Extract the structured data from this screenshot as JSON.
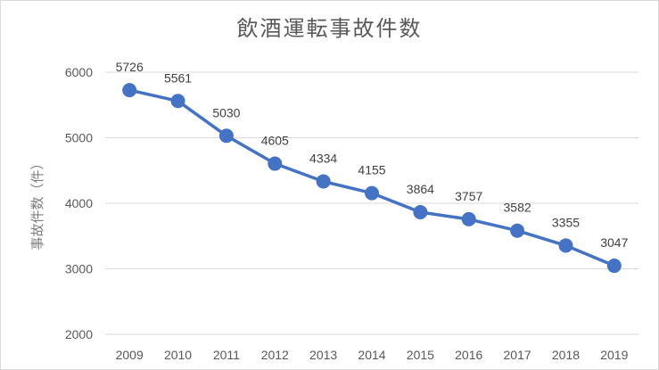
{
  "chart_data": {
    "type": "line",
    "title": "飲酒運転事故件数",
    "xlabel": "",
    "ylabel": "事故件数（件）",
    "categories": [
      "2009",
      "2010",
      "2011",
      "2012",
      "2013",
      "2014",
      "2015",
      "2016",
      "2017",
      "2018",
      "2019"
    ],
    "series": [
      {
        "values": [
          5726,
          5561,
          5030,
          4605,
          4334,
          4155,
          3864,
          3757,
          3582,
          3355,
          3047
        ]
      }
    ],
    "ylim": [
      2000,
      6000
    ],
    "yticks": [
      2000,
      3000,
      4000,
      5000,
      6000
    ],
    "grid": true,
    "data_labels": true,
    "colors": {
      "line": "#4472c4",
      "marker": "#4472c4",
      "grid": "#d9d9d9"
    }
  }
}
